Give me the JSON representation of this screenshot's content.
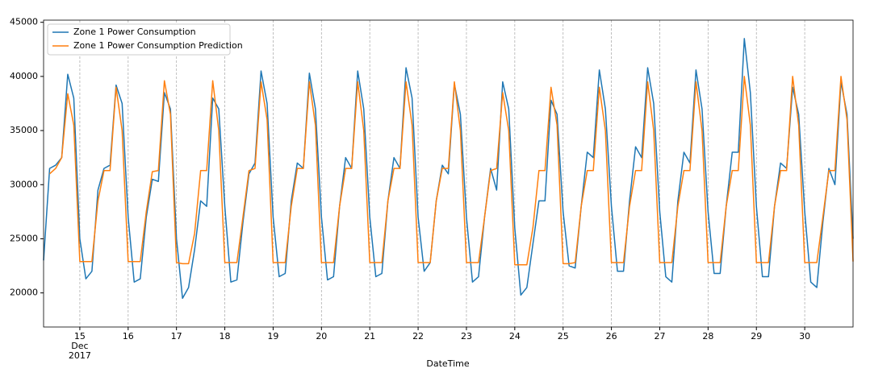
{
  "chart_data": {
    "type": "line",
    "x_label": "DateTime",
    "x": [
      14.25,
      14.375,
      14.5,
      14.625,
      14.75,
      14.875,
      15,
      15.125,
      15.25,
      15.375,
      15.5,
      15.625,
      15.75,
      15.875,
      16,
      16.125,
      16.25,
      16.375,
      16.5,
      16.625,
      16.75,
      16.875,
      17,
      17.125,
      17.25,
      17.375,
      17.5,
      17.625,
      17.75,
      17.875,
      18,
      18.125,
      18.25,
      18.375,
      18.5,
      18.625,
      18.75,
      18.875,
      19,
      19.125,
      19.25,
      19.375,
      19.5,
      19.625,
      19.75,
      19.875,
      20,
      20.125,
      20.25,
      20.375,
      20.5,
      20.625,
      20.75,
      20.875,
      21,
      21.125,
      21.25,
      21.375,
      21.5,
      21.625,
      21.75,
      21.875,
      22,
      22.125,
      22.25,
      22.375,
      22.5,
      22.625,
      22.75,
      22.875,
      23,
      23.125,
      23.25,
      23.375,
      23.5,
      23.625,
      23.75,
      23.875,
      24,
      24.125,
      24.25,
      24.375,
      24.5,
      24.625,
      24.75,
      24.875,
      25,
      25.125,
      25.25,
      25.375,
      25.5,
      25.625,
      25.75,
      25.875,
      26,
      26.125,
      26.25,
      26.375,
      26.5,
      26.625,
      26.75,
      26.875,
      27,
      27.125,
      27.25,
      27.375,
      27.5,
      27.625,
      27.75,
      27.875,
      28,
      28.125,
      28.25,
      28.375,
      28.5,
      28.625,
      28.75,
      28.875,
      29,
      29.125,
      29.25,
      29.375,
      29.5,
      29.625,
      29.75,
      29.875,
      30,
      30.125,
      30.25,
      30.375,
      30.5,
      30.625,
      30.75,
      30.875,
      31
    ],
    "series": [
      {
        "name": "Zone 1 Power Consumption",
        "color": "#1f77b4",
        "values": [
          23000,
          31500,
          31800,
          32500,
          40200,
          38000,
          25000,
          21300,
          22000,
          29500,
          31500,
          31800,
          39200,
          37500,
          27000,
          21000,
          21300,
          27000,
          30500,
          30300,
          38500,
          37000,
          25000,
          19500,
          20500,
          24000,
          28500,
          28000,
          38000,
          37000,
          28000,
          21000,
          21200,
          26500,
          31000,
          32000,
          40500,
          37500,
          27000,
          21500,
          21800,
          28500,
          32000,
          31500,
          40300,
          37000,
          27000,
          21200,
          21500,
          28000,
          32500,
          31500,
          40500,
          37000,
          27000,
          21500,
          21800,
          28500,
          32500,
          31500,
          40800,
          38000,
          27000,
          22000,
          22800,
          28500,
          31800,
          31000,
          39300,
          36500,
          27000,
          21000,
          21500,
          27000,
          31500,
          29500,
          39500,
          37000,
          26000,
          19800,
          20500,
          24500,
          28500,
          28500,
          37800,
          36500,
          27500,
          22500,
          22300,
          28000,
          33000,
          32500,
          40600,
          37000,
          28000,
          22000,
          22000,
          28500,
          33500,
          32500,
          40800,
          37500,
          27500,
          21500,
          21000,
          28500,
          33000,
          32000,
          40600,
          37000,
          27500,
          21800,
          21800,
          28000,
          33000,
          33000,
          43500,
          38500,
          28000,
          21500,
          21500,
          28000,
          32000,
          31500,
          39000,
          36500,
          27500,
          21000,
          20500,
          26500,
          31500,
          30000,
          39500,
          36500,
          25000
        ]
      },
      {
        "name": "Zone 1 Power Consumption Prediction",
        "color": "#ff7f0e",
        "values": [
          null,
          31000,
          31500,
          32500,
          38400,
          35500,
          22900,
          22900,
          22900,
          28500,
          31300,
          31300,
          39000,
          35000,
          22900,
          22900,
          22900,
          27500,
          31200,
          31300,
          39600,
          36500,
          22800,
          22700,
          22700,
          25500,
          31300,
          31300,
          39600,
          35000,
          22800,
          22800,
          22800,
          27000,
          31300,
          31500,
          39500,
          36000,
          22800,
          22800,
          22800,
          28000,
          31500,
          31500,
          39500,
          35500,
          22800,
          22800,
          22800,
          28000,
          31500,
          31500,
          39500,
          35000,
          22800,
          22800,
          22800,
          28500,
          31500,
          31500,
          39500,
          35500,
          22800,
          22800,
          22800,
          28500,
          31500,
          31500,
          39500,
          35000,
          22800,
          22800,
          22800,
          27000,
          31300,
          31500,
          38500,
          35000,
          22600,
          22600,
          22600,
          26000,
          31300,
          31300,
          39000,
          35500,
          22700,
          22700,
          22800,
          28000,
          31300,
          31300,
          39000,
          35000,
          22800,
          22800,
          22800,
          28000,
          31300,
          31300,
          39500,
          35000,
          22800,
          22800,
          22800,
          28000,
          31300,
          31300,
          39500,
          35000,
          22800,
          22800,
          22800,
          28000,
          31300,
          31300,
          40000,
          35500,
          22800,
          22800,
          22800,
          28000,
          31300,
          31300,
          40000,
          35500,
          22800,
          22800,
          22800,
          27000,
          31300,
          31300,
          40000,
          36000,
          22900
        ]
      }
    ],
    "xlim": [
      14.25,
      31.0
    ],
    "xticks": [
      {
        "value": 15,
        "label": [
          "15",
          "Dec",
          "2017"
        ]
      },
      16,
      17,
      18,
      19,
      20,
      21,
      22,
      23,
      24,
      25,
      26,
      27,
      28,
      29,
      30
    ],
    "ylim": [
      16850,
      45200
    ],
    "yticks": [
      20000,
      25000,
      30000,
      35000,
      40000,
      45000
    ],
    "x_grid": true,
    "legend": "upper left"
  }
}
